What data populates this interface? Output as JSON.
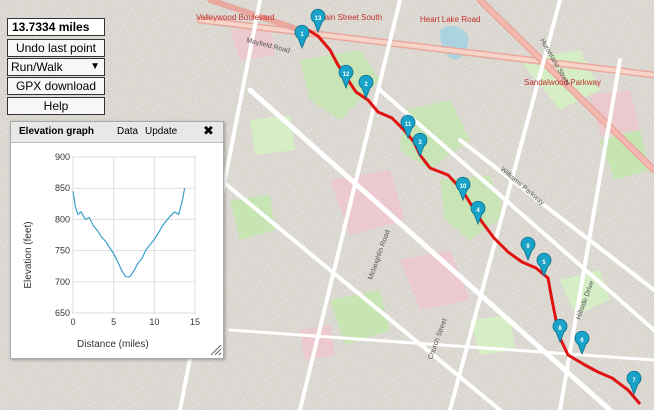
{
  "controls": {
    "distance": "13.7334 miles",
    "undo_label": "Undo last point",
    "mode_selected": "Run/Walk",
    "gpx_label": "GPX download",
    "help_label": "Help"
  },
  "elevation": {
    "title": "Elevation graph",
    "data_label": "Data",
    "update_label": "Update",
    "close_symbol": "✖",
    "xlabel": "Distance (miles)",
    "ylabel": "Elevation (feet)"
  },
  "chart_data": {
    "type": "line",
    "xlabel": "Distance (miles)",
    "ylabel": "Elevation (feet)",
    "xlim": [
      0,
      15
    ],
    "ylim": [
      650,
      900
    ],
    "xticks": [
      0,
      5,
      10,
      15
    ],
    "yticks": [
      650,
      700,
      750,
      800,
      850,
      900
    ],
    "grid": true,
    "x": [
      0,
      0.3,
      0.6,
      1.0,
      1.5,
      2.0,
      2.5,
      3.0,
      3.5,
      4.0,
      4.5,
      5.0,
      5.5,
      6.0,
      6.5,
      7.0,
      7.5,
      8.0,
      8.5,
      9.0,
      9.5,
      10.0,
      10.5,
      11.0,
      11.5,
      12.0,
      12.5,
      13.0,
      13.4,
      13.73
    ],
    "y": [
      845,
      820,
      808,
      812,
      800,
      803,
      790,
      782,
      772,
      765,
      755,
      745,
      732,
      718,
      708,
      708,
      718,
      730,
      738,
      752,
      760,
      768,
      778,
      790,
      798,
      806,
      812,
      808,
      828,
      850
    ]
  },
  "map": {
    "road_labels": [
      "Valleywood Boulevard",
      "Mayfield Road",
      "Main Street South",
      "Heart Lake Road",
      "Sandalwood Parkway",
      "Hurontario Street",
      "Mclaughlin Road",
      "Williams Parkway",
      "Hillside Drive",
      "Church Street"
    ],
    "markers": [
      "1",
      "13",
      "12",
      "2",
      "11",
      "3",
      "10",
      "4",
      "9",
      "5",
      "8",
      "6",
      "7"
    ]
  }
}
